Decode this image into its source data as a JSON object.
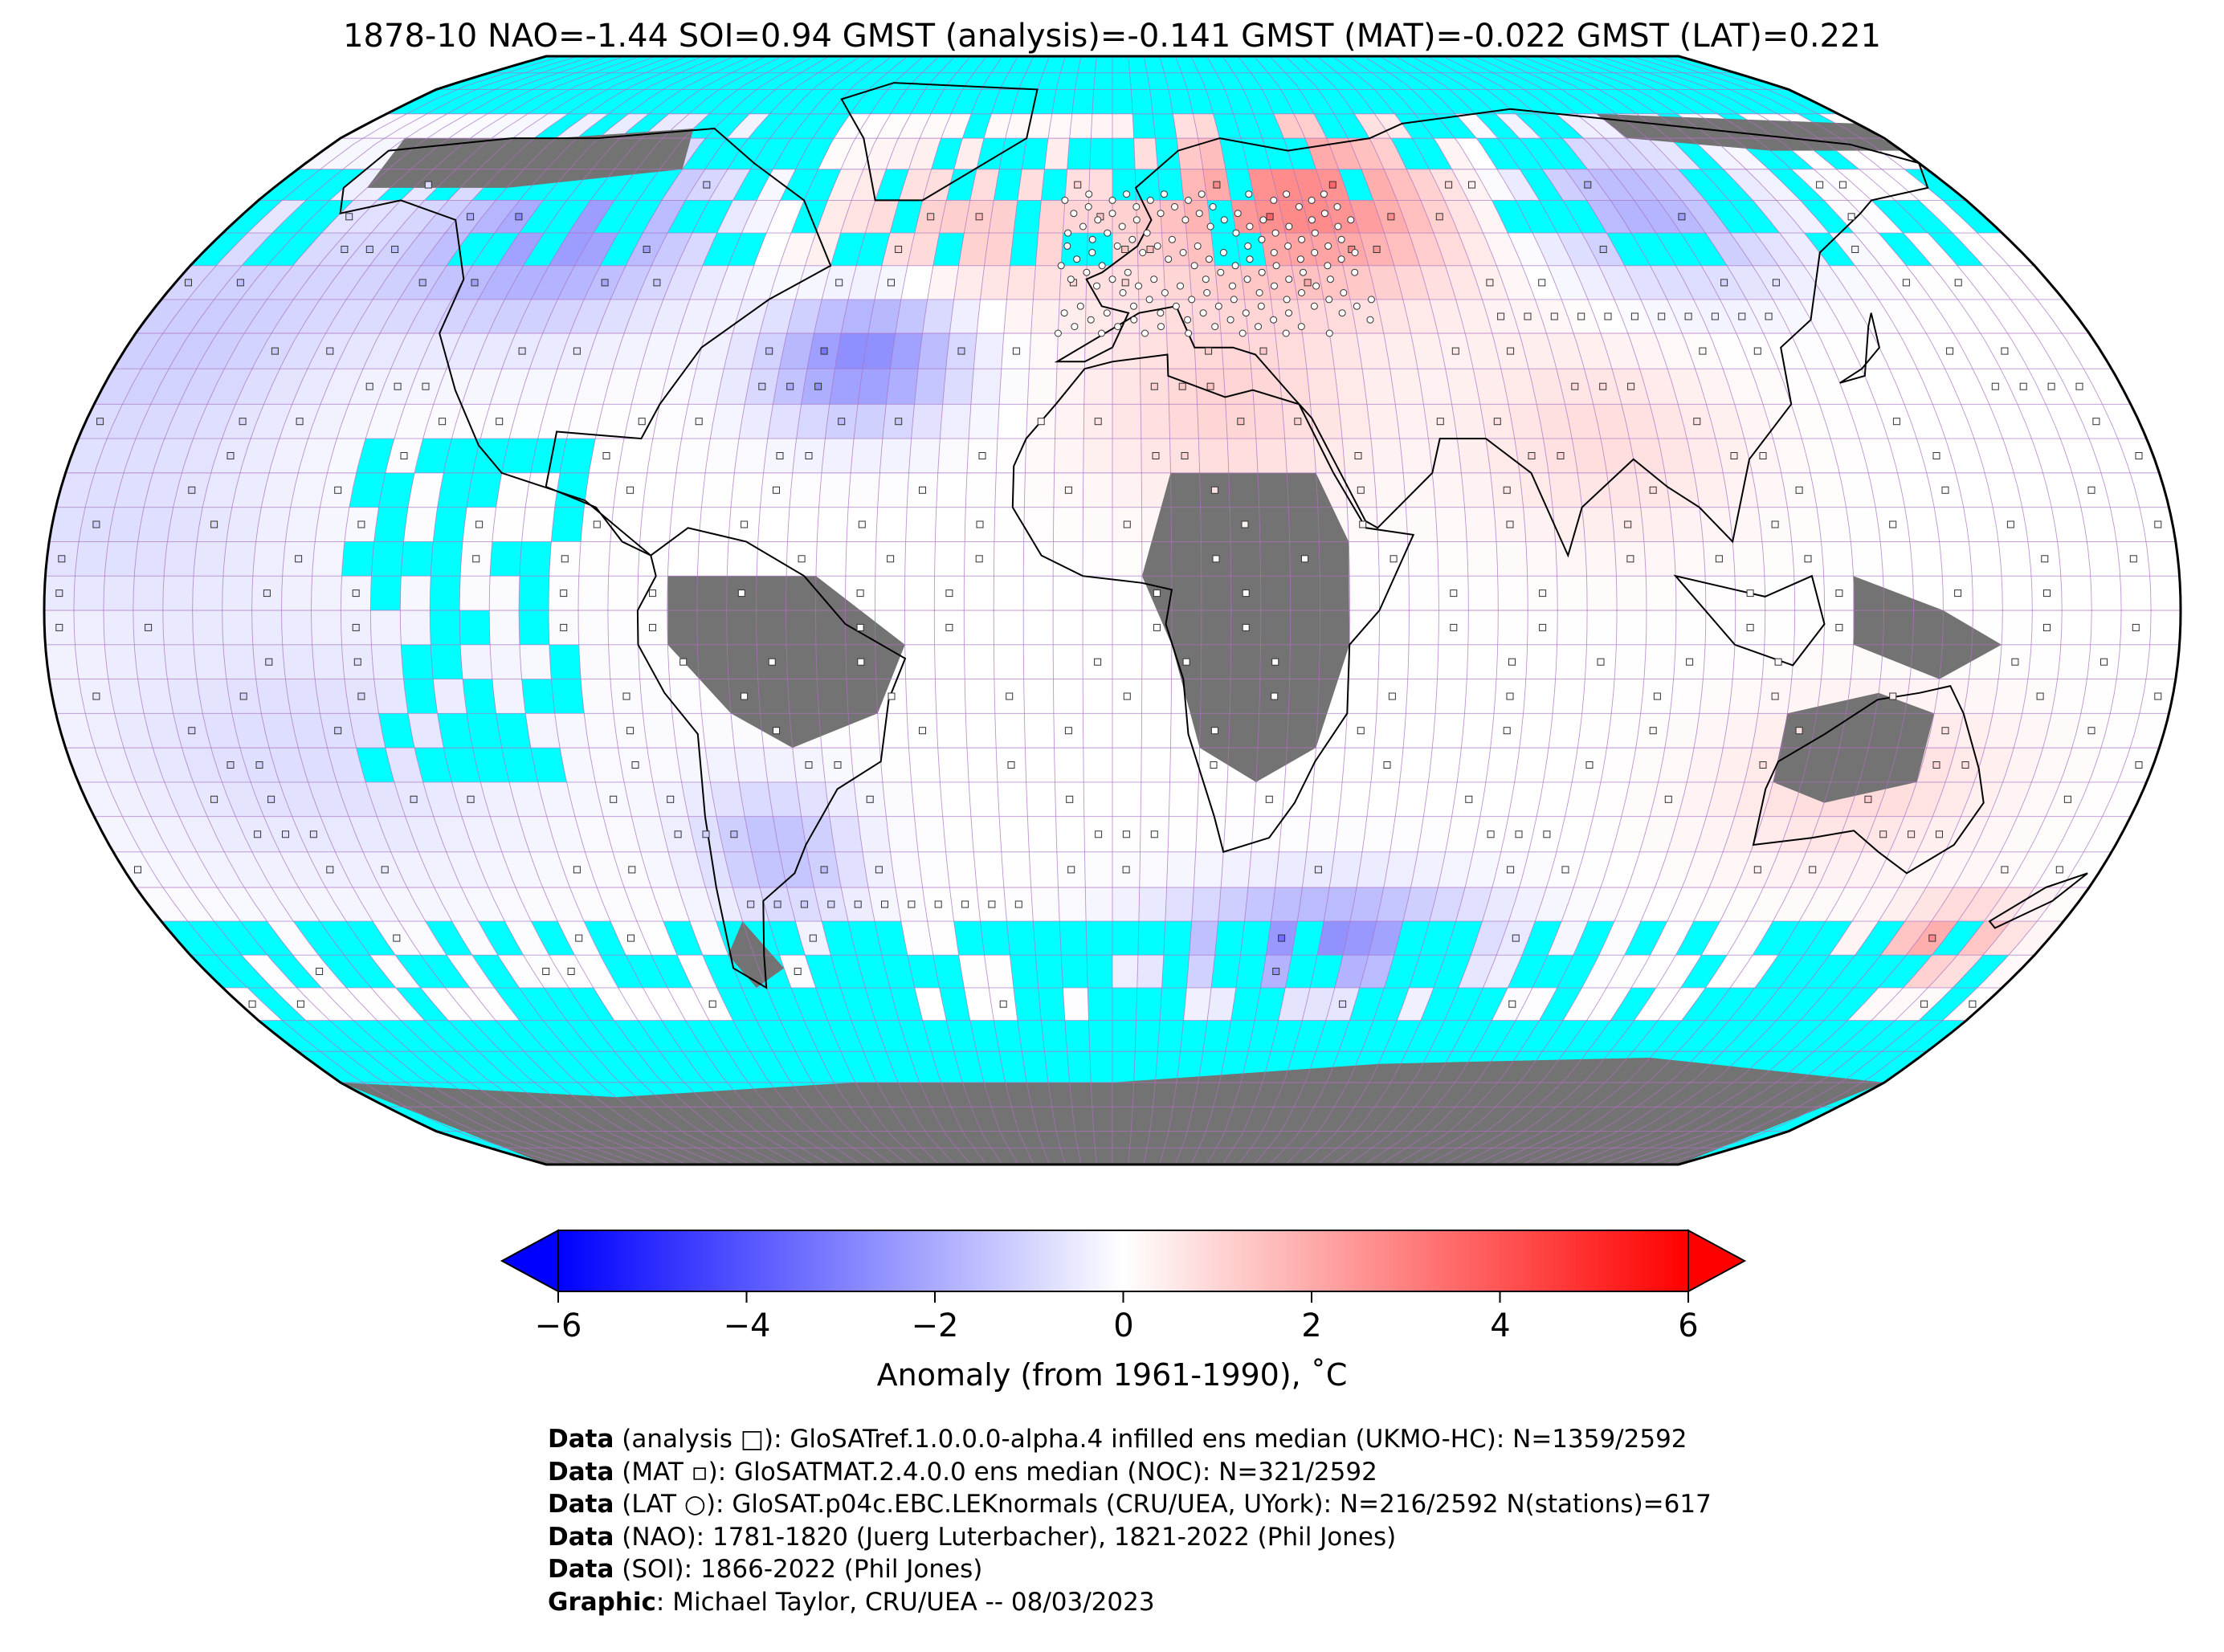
{
  "title": "1878-10 NAO=-1.44 SOI=0.94 GMST (analysis)=-0.141 GMST (MAT)=-0.022 GMST (LAT)=0.221",
  "colorbar": {
    "label": "Anomaly (from 1961-1990), ˚C",
    "ticks": [
      "−6",
      "−4",
      "−2",
      "0",
      "2",
      "4",
      "6"
    ],
    "range": [
      -6,
      6
    ],
    "colors": {
      "min": "#0000ff",
      "mid": "#ffffff",
      "max": "#ff0000"
    }
  },
  "map": {
    "projection": "Robinson",
    "colors": {
      "ocean_missing": "#00ffff",
      "land_missing": "#737373",
      "grid": "#b070c0"
    },
    "regions": [
      {
        "name": "north-america-cold",
        "anomaly": -2.4
      },
      {
        "name": "north-atlantic-cold",
        "anomaly": -2.8
      },
      {
        "name": "north-atlantic-warm",
        "anomaly": 1.2
      },
      {
        "name": "europe-russia-warm",
        "anomaly": 2.8
      },
      {
        "name": "siberia-cold",
        "anomaly": -1.8
      },
      {
        "name": "india-china-warm",
        "anomaly": 0.8
      },
      {
        "name": "south-pacific-cool",
        "anomaly": -0.8
      },
      {
        "name": "southern-ocean-indian-cold",
        "anomaly": -2.6
      },
      {
        "name": "australia-warm",
        "anomaly": 0.9
      },
      {
        "name": "tasman-warm",
        "anomaly": 2.0
      }
    ]
  },
  "credits": [
    {
      "bold": "Data",
      "text": " (analysis □): GloSATref.1.0.0.0-alpha.4 infilled ens median (UKMO-HC): N=1359/2592"
    },
    {
      "bold": "Data",
      "text": " (MAT ▫): GloSATMAT.2.4.0.0 ens median (NOC): N=321/2592"
    },
    {
      "bold": "Data",
      "text": " (LAT ○): GloSAT.p04c.EBC.LEKnormals (CRU/UEA, UYork): N=216/2592 N(stations)=617"
    },
    {
      "bold": "Data",
      "text": " (NAO): 1781-1820 (Juerg Luterbacher), 1821-2022 (Phil Jones)"
    },
    {
      "bold": "Data",
      "text": " (SOI): 1866-2022 (Phil Jones)"
    },
    {
      "bold": "Graphic",
      "text": ": Michael Taylor, CRU/UEA -- 08/03/2023"
    }
  ]
}
